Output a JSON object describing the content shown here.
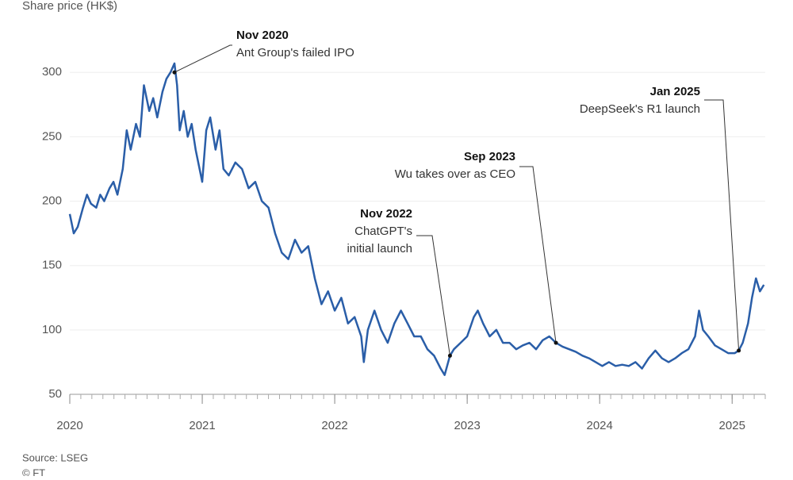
{
  "chart_data": {
    "type": "line",
    "y_axis_label": "Share price (HK$)",
    "source": "Source: LSEG",
    "credit": "© FT",
    "x": [
      2020.0,
      2020.03,
      2020.06,
      2020.1,
      2020.13,
      2020.16,
      2020.2,
      2020.23,
      2020.26,
      2020.3,
      2020.33,
      2020.36,
      2020.4,
      2020.43,
      2020.46,
      2020.5,
      2020.53,
      2020.56,
      2020.6,
      2020.63,
      2020.66,
      2020.7,
      2020.73,
      2020.76,
      2020.79,
      2020.81,
      2020.83,
      2020.86,
      2020.89,
      2020.92,
      2020.95,
      2021.0,
      2021.03,
      2021.06,
      2021.1,
      2021.13,
      2021.16,
      2021.2,
      2021.25,
      2021.3,
      2021.35,
      2021.4,
      2021.45,
      2021.5,
      2021.55,
      2021.6,
      2021.65,
      2021.7,
      2021.75,
      2021.8,
      2021.85,
      2021.9,
      2021.95,
      2022.0,
      2022.05,
      2022.1,
      2022.15,
      2022.2,
      2022.22,
      2022.25,
      2022.3,
      2022.35,
      2022.4,
      2022.45,
      2022.5,
      2022.55,
      2022.6,
      2022.65,
      2022.7,
      2022.75,
      2022.8,
      2022.83,
      2022.87,
      2022.9,
      2022.95,
      2023.0,
      2023.05,
      2023.08,
      2023.12,
      2023.17,
      2023.22,
      2023.27,
      2023.32,
      2023.37,
      2023.42,
      2023.47,
      2023.52,
      2023.57,
      2023.62,
      2023.67,
      2023.72,
      2023.77,
      2023.82,
      2023.87,
      2023.92,
      2023.97,
      2024.02,
      2024.07,
      2024.12,
      2024.17,
      2024.22,
      2024.27,
      2024.32,
      2024.37,
      2024.42,
      2024.47,
      2024.52,
      2024.57,
      2024.62,
      2024.67,
      2024.72,
      2024.75,
      2024.78,
      2024.82,
      2024.87,
      2024.92,
      2024.97,
      2025.02,
      2025.05,
      2025.08,
      2025.12,
      2025.15,
      2025.18,
      2025.21,
      2025.24
    ],
    "series": [
      {
        "name": "Share price",
        "color": "#2a5ea8",
        "values": [
          190,
          175,
          180,
          195,
          205,
          198,
          195,
          205,
          200,
          210,
          215,
          205,
          225,
          255,
          240,
          260,
          250,
          290,
          270,
          280,
          265,
          285,
          295,
          300,
          307,
          290,
          255,
          270,
          250,
          260,
          240,
          215,
          255,
          265,
          240,
          255,
          225,
          220,
          230,
          225,
          210,
          215,
          200,
          195,
          175,
          160,
          155,
          170,
          160,
          165,
          140,
          120,
          130,
          115,
          125,
          105,
          110,
          95,
          75,
          100,
          115,
          100,
          90,
          105,
          115,
          105,
          95,
          95,
          85,
          80,
          70,
          65,
          80,
          85,
          90,
          95,
          110,
          115,
          105,
          95,
          100,
          90,
          90,
          85,
          88,
          90,
          85,
          92,
          95,
          90,
          87,
          85,
          83,
          80,
          78,
          75,
          72,
          75,
          72,
          73,
          72,
          75,
          70,
          78,
          84,
          78,
          75,
          78,
          82,
          85,
          95,
          115,
          100,
          95,
          88,
          85,
          82,
          82,
          84,
          90,
          105,
          125,
          140,
          130,
          135
        ]
      }
    ],
    "xlim": [
      2020,
      2025.25
    ],
    "xticks": [
      2020,
      2021,
      2022,
      2023,
      2024,
      2025
    ],
    "ylim": [
      50,
      310
    ],
    "yticks": [
      50,
      100,
      150,
      200,
      250,
      300
    ],
    "annotations": [
      {
        "date": "Nov 2020",
        "text": [
          "Ant Group's failed IPO"
        ],
        "x": 2020.79,
        "y": 300
      },
      {
        "date": "Nov 2022",
        "text": [
          "ChatGPT's",
          "initial launch"
        ],
        "x": 2022.87,
        "y": 80
      },
      {
        "date": "Sep 2023",
        "text": [
          "Wu takes over as CEO"
        ],
        "x": 2023.67,
        "y": 90
      },
      {
        "date": "Jan 2025",
        "text": [
          "DeepSeek's R1 launch"
        ],
        "x": 2025.05,
        "y": 84
      }
    ]
  }
}
